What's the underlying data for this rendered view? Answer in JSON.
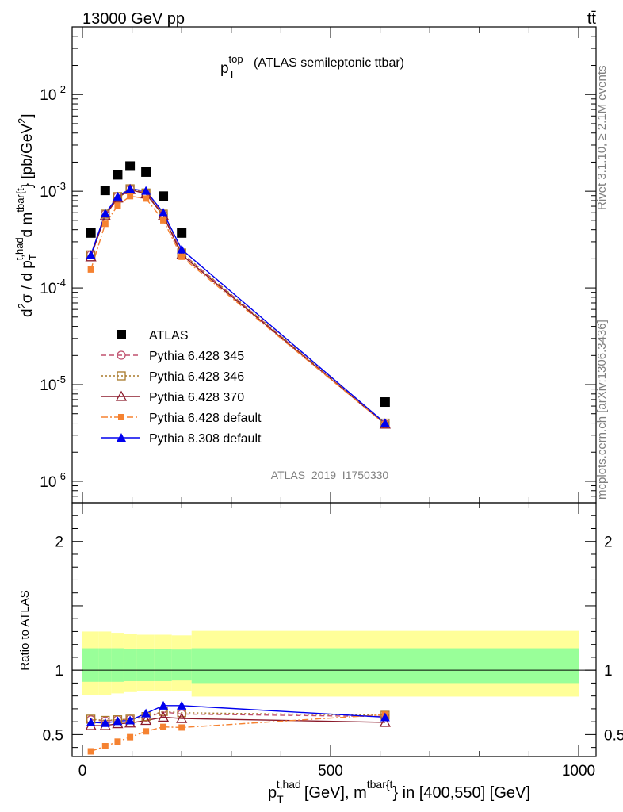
{
  "header": {
    "energy": "13000 GeV pp",
    "process": "tt̄"
  },
  "side": {
    "rivet": "Rivet 3.1.10, ≥ 2.1M events",
    "mcplots": "mcplots.cern.ch [arXiv:1306.3436]"
  },
  "chart_data": [
    {
      "type": "scatter",
      "title": "p_T^top (ATLAS semileptonic ttbar)",
      "title_parts": {
        "main": "p",
        "sub": "T",
        "sup": "top",
        "rest": "(ATLAS semileptonic ttbar)"
      },
      "ylabel": "d²σ / d p_T^{t,had} d m^{tbar{t}} [pb/GeV²]",
      "ylabel_parts": {
        "d2": "d",
        "two": "2",
        "sigma": "σ / d p",
        "sub": "T",
        "sup": "t,had",
        "mid": "d m",
        "sup2": "tbar{t",
        "close": "} [pb/GeV",
        "exp": "2",
        "end": "]"
      },
      "yscale": "log",
      "ylim": [
        6e-07,
        0.05
      ],
      "xlim": [
        -20,
        1000
      ],
      "ytick_labels": [
        {
          "value": 0.01,
          "base": "10",
          "exp": "-2"
        },
        {
          "value": 0.001,
          "base": "10",
          "exp": "-3"
        },
        {
          "value": 0.0001,
          "base": "10",
          "exp": "-4"
        },
        {
          "value": 1e-05,
          "base": "10",
          "exp": "-5"
        },
        {
          "value": 1e-06,
          "base": "10",
          "exp": "-6"
        }
      ],
      "watermark": "ATLAS_2019_I1750330",
      "legend_position": "bottom-left",
      "series": [
        {
          "name": "ATLAS",
          "color": "#000000",
          "marker": "square",
          "line": "none",
          "x": [
            17,
            46,
            71,
            96,
            128,
            163,
            200,
            610
          ],
          "y": [
            0.00037,
            0.00102,
            0.00148,
            0.00182,
            0.00158,
            0.00089,
            0.00037,
            6.6e-06
          ]
        },
        {
          "name": "Pythia 6.428 345",
          "color": "#c0506e",
          "marker": "circle-open",
          "line": "dashed",
          "x": [
            17,
            46,
            71,
            96,
            128,
            163,
            200,
            610
          ],
          "y": [
            0.00022,
            0.00058,
            0.00088,
            0.00106,
            0.00096,
            0.00058,
            0.00023,
            3.9e-06
          ]
        },
        {
          "name": "Pythia 6.428 346",
          "color": "#a8782a",
          "marker": "square-open",
          "line": "dotted",
          "x": [
            17,
            46,
            71,
            96,
            128,
            163,
            200,
            610
          ],
          "y": [
            0.00022,
            0.00058,
            0.00088,
            0.00106,
            0.00096,
            0.00058,
            0.00023,
            4e-06
          ]
        },
        {
          "name": "Pythia 6.428 370",
          "color": "#8b1a2b",
          "marker": "triangle-open",
          "line": "solid",
          "x": [
            17,
            46,
            71,
            96,
            128,
            163,
            200,
            610
          ],
          "y": [
            0.00021,
            0.00056,
            0.00085,
            0.00104,
            0.00094,
            0.00056,
            0.00022,
            3.9e-06
          ]
        },
        {
          "name": "Pythia 6.428 default",
          "color": "#f58231",
          "marker": "square-small",
          "line": "dashdot",
          "x": [
            17,
            46,
            71,
            96,
            128,
            163,
            200,
            610
          ],
          "y": [
            0.000155,
            0.00046,
            0.00071,
            0.00089,
            0.00084,
            0.0005,
            0.00021,
            3.9e-06
          ]
        },
        {
          "name": "Pythia 8.308 default",
          "color": "#0000ee",
          "marker": "triangle",
          "line": "solid",
          "x": [
            17,
            46,
            71,
            96,
            128,
            163,
            200,
            610
          ],
          "y": [
            0.00022,
            0.00059,
            0.00088,
            0.00106,
            0.00101,
            0.0006,
            0.00025,
            4e-06
          ]
        }
      ]
    },
    {
      "type": "line",
      "ylabel": "Ratio to ATLAS",
      "ylim": [
        0.33,
        2.3
      ],
      "xlim": [
        -20,
        1000
      ],
      "xlabel": "p_T^{t,had} [GeV], m^{tbar{t}} in [400,550] [GeV]",
      "xlabel_parts": {
        "p": "p",
        "sub": "T",
        "sup": "t,had",
        "mid": "[GeV], m",
        "sup2": "tbar{t",
        "end": "} in [400,550] [GeV]"
      },
      "xticks": [
        0,
        500,
        1000
      ],
      "xtick_labels": [
        "0",
        "500",
        "1000"
      ],
      "yticks": [
        0.5,
        1,
        2
      ],
      "ytick_labels": [
        "0.5",
        "1",
        "2"
      ],
      "reference": 1,
      "bands": [
        {
          "x_from": 0,
          "x_to": 33,
          "inner": [
            0.91,
            1.17
          ],
          "outer": [
            0.81,
            1.3
          ]
        },
        {
          "x_from": 33,
          "x_to": 58,
          "inner": [
            0.91,
            1.17
          ],
          "outer": [
            0.81,
            1.3
          ]
        },
        {
          "x_from": 58,
          "x_to": 83,
          "inner": [
            0.91,
            1.17
          ],
          "outer": [
            0.82,
            1.29
          ]
        },
        {
          "x_from": 83,
          "x_to": 110,
          "inner": [
            0.915,
            1.165
          ],
          "outer": [
            0.83,
            1.28
          ]
        },
        {
          "x_from": 110,
          "x_to": 145,
          "inner": [
            0.915,
            1.165
          ],
          "outer": [
            0.835,
            1.275
          ]
        },
        {
          "x_from": 145,
          "x_to": 180,
          "inner": [
            0.915,
            1.165
          ],
          "outer": [
            0.835,
            1.275
          ]
        },
        {
          "x_from": 180,
          "x_to": 220,
          "inner": [
            0.92,
            1.16
          ],
          "outer": [
            0.84,
            1.27
          ]
        },
        {
          "x_from": 220,
          "x_to": 1000,
          "inner": [
            0.9,
            1.17
          ],
          "outer": [
            0.795,
            1.305
          ]
        }
      ],
      "series": [
        {
          "name": "Pythia 6.428 345",
          "color": "#c0506e",
          "marker": "circle-open",
          "line": "dashed",
          "x": [
            17,
            46,
            71,
            96,
            128,
            163,
            200,
            610
          ],
          "y": [
            0.615,
            0.605,
            0.615,
            0.62,
            0.635,
            0.675,
            0.66,
            0.64
          ]
        },
        {
          "name": "Pythia 6.428 346",
          "color": "#a8782a",
          "marker": "square-open",
          "line": "dotted",
          "x": [
            17,
            46,
            71,
            96,
            128,
            163,
            200,
            610
          ],
          "y": [
            0.62,
            0.61,
            0.615,
            0.62,
            0.64,
            0.68,
            0.67,
            0.65
          ]
        },
        {
          "name": "Pythia 6.428 370",
          "color": "#8b1a2b",
          "marker": "triangle-open",
          "line": "solid",
          "x": [
            17,
            46,
            71,
            96,
            128,
            163,
            200,
            610
          ],
          "y": [
            0.57,
            0.57,
            0.585,
            0.59,
            0.61,
            0.635,
            0.625,
            0.595
          ]
        },
        {
          "name": "Pythia 6.428 default",
          "color": "#f58231",
          "marker": "square-small",
          "line": "dashdot",
          "x": [
            17,
            46,
            71,
            96,
            128,
            163,
            200,
            610
          ],
          "y": [
            0.37,
            0.41,
            0.445,
            0.48,
            0.525,
            0.56,
            0.555,
            0.655
          ]
        },
        {
          "name": "Pythia 8.308 default",
          "color": "#0000ee",
          "marker": "triangle",
          "line": "solid",
          "x": [
            17,
            46,
            71,
            96,
            128,
            163,
            200,
            610
          ],
          "y": [
            0.595,
            0.59,
            0.605,
            0.61,
            0.665,
            0.725,
            0.725,
            0.635
          ]
        }
      ]
    }
  ]
}
